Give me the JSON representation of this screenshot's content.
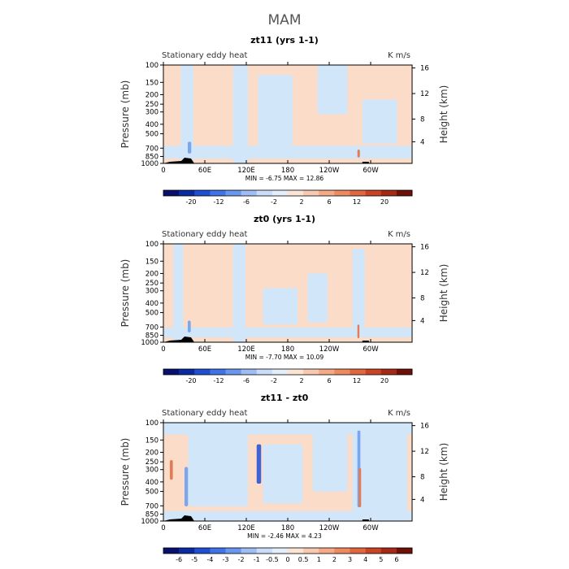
{
  "figure_title": "MAM",
  "colors": {
    "light_blue": "#d2e6fa",
    "light_peach": "#fbdcc8",
    "mid_blue": "#78a6ef",
    "strong_blue": "#3f63d6",
    "mid_red": "#e37c56",
    "topography": "#000000"
  },
  "chart_data": [
    {
      "type": "heatmap",
      "title": "zt11 (yrs 1-1)",
      "left_label": "Stationary eddy heat",
      "units": "K m/s",
      "ylabel": "Pressure (mb)",
      "ylabel_right": "Height (km)",
      "x_ticks": [
        "0",
        "60E",
        "120E",
        "180",
        "120W",
        "60W"
      ],
      "y_ticks": [
        "100",
        "150",
        "200",
        "250",
        "300",
        "400",
        "500",
        "700",
        "850",
        "1000"
      ],
      "y_ticks_right": [
        "16",
        "12",
        "8",
        "4"
      ],
      "minmax_text": "MIN =   -6.75   MAX =   12.86",
      "colorbar_labels": [
        "-20",
        "-12",
        "-6",
        "-2",
        "2",
        "6",
        "12",
        "20"
      ],
      "colorbar_colors": [
        "#08106e",
        "#0a2aa0",
        "#1f4fd0",
        "#3f73e6",
        "#6a97ee",
        "#9ebdf4",
        "#c9dcf8",
        "#e4eefb",
        "#fbe4d4",
        "#f8c9b0",
        "#f4aa86",
        "#ee8a60",
        "#e06840",
        "#c94424",
        "#a52a14",
        "#6e1008"
      ]
    },
    {
      "type": "heatmap",
      "title": "zt0 (yrs 1-1)",
      "left_label": "Stationary eddy heat",
      "units": "K m/s",
      "ylabel": "Pressure (mb)",
      "ylabel_right": "Height (km)",
      "x_ticks": [
        "0",
        "60E",
        "120E",
        "180",
        "120W",
        "60W"
      ],
      "y_ticks": [
        "100",
        "150",
        "200",
        "250",
        "300",
        "400",
        "500",
        "700",
        "850",
        "1000"
      ],
      "y_ticks_right": [
        "16",
        "12",
        "8",
        "4"
      ],
      "minmax_text": "MIN =   -7.70   MAX =   10.09",
      "colorbar_labels": [
        "-20",
        "-12",
        "-6",
        "-2",
        "2",
        "6",
        "12",
        "20"
      ],
      "colorbar_colors": [
        "#08106e",
        "#0a2aa0",
        "#1f4fd0",
        "#3f73e6",
        "#6a97ee",
        "#9ebdf4",
        "#c9dcf8",
        "#e4eefb",
        "#fbe4d4",
        "#f8c9b0",
        "#f4aa86",
        "#ee8a60",
        "#e06840",
        "#c94424",
        "#a52a14",
        "#6e1008"
      ]
    },
    {
      "type": "heatmap",
      "title": "zt11 - zt0",
      "left_label": "Stationary eddy heat",
      "units": "K m/s",
      "ylabel": "Pressure (mb)",
      "ylabel_right": "Height (km)",
      "x_ticks": [
        "0",
        "60E",
        "120E",
        "180",
        "120W",
        "60W"
      ],
      "y_ticks": [
        "100",
        "150",
        "200",
        "250",
        "300",
        "400",
        "500",
        "700",
        "850",
        "1000"
      ],
      "y_ticks_right": [
        "16",
        "12",
        "8",
        "4"
      ],
      "minmax_text": "MIN =   -2.46   MAX =    4.23",
      "colorbar_labels": [
        "-6",
        "-5",
        "-4",
        "-3",
        "-2",
        "-1",
        "-0.5",
        "0",
        "0.5",
        "1",
        "2",
        "3",
        "4",
        "5",
        "6"
      ],
      "colorbar_colors": [
        "#08106e",
        "#0a2aa0",
        "#1f4fd0",
        "#3f73e6",
        "#6a97ee",
        "#9ebdf4",
        "#c9dcf8",
        "#e4eefb",
        "#fbe4d4",
        "#f8c9b0",
        "#f4aa86",
        "#ee8a60",
        "#e06840",
        "#c94424",
        "#a52a14",
        "#6e1008"
      ]
    }
  ]
}
